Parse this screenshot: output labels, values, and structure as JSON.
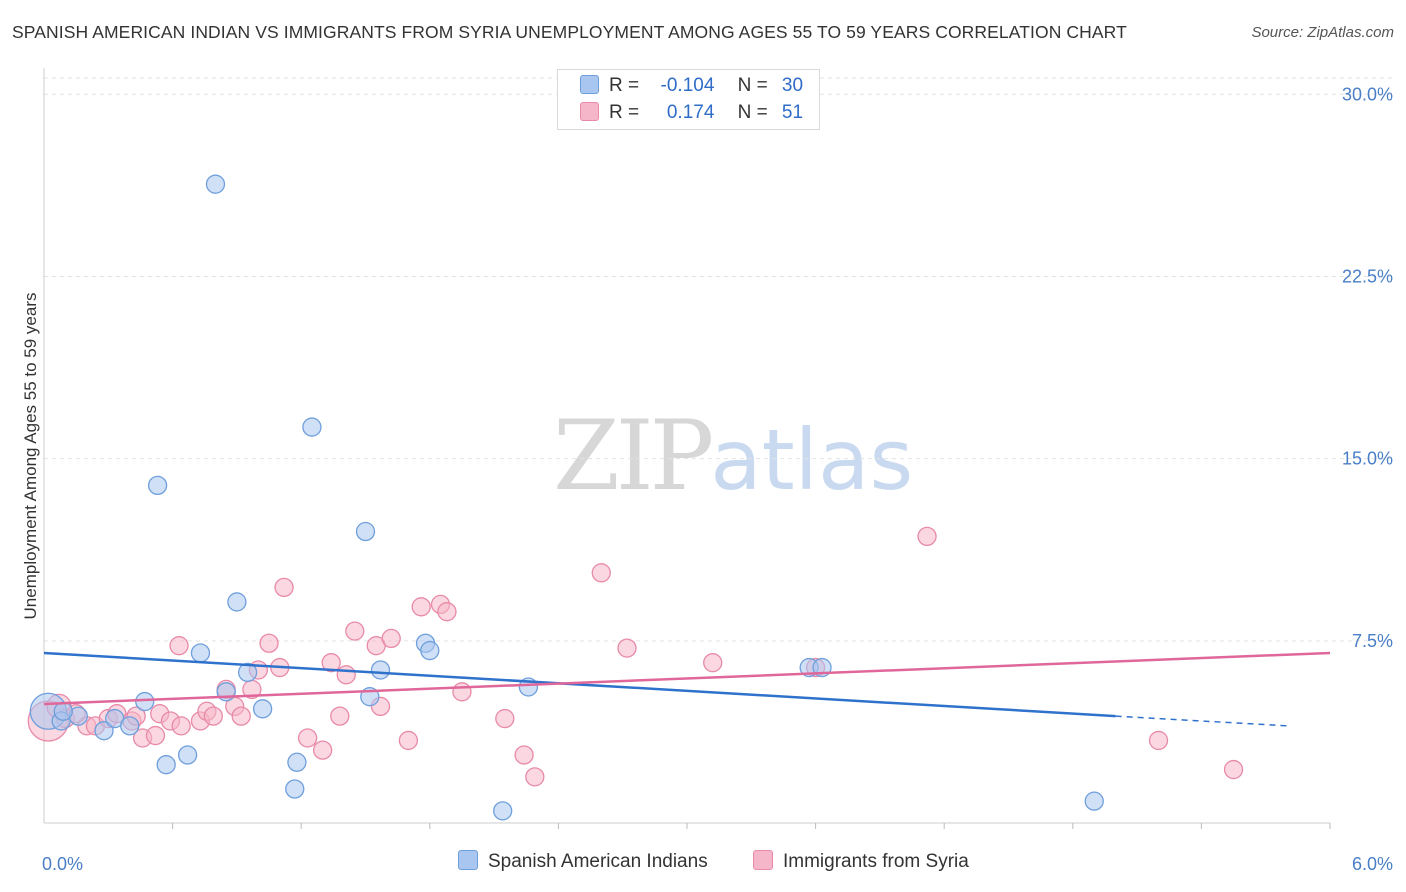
{
  "header": {
    "title": "SPANISH AMERICAN INDIAN VS IMMIGRANTS FROM SYRIA UNEMPLOYMENT AMONG AGES 55 TO 59 YEARS CORRELATION CHART",
    "source": "Source: ZipAtlas.com"
  },
  "watermark": {
    "zip": "ZIP",
    "atlas": "atlas"
  },
  "legend_top": {
    "rows": [
      {
        "r_label": "R =",
        "r_value": "-0.104",
        "n_label": "N =",
        "n_value": "30",
        "color": "#a9c6f0"
      },
      {
        "r_label": "R =",
        "r_value": "0.174",
        "n_label": "N =",
        "n_value": "51",
        "color": "#f5b6c9"
      }
    ]
  },
  "legend_bottom": {
    "items": [
      {
        "label": "Spanish American Indians",
        "color": "#a9c6f0"
      },
      {
        "label": "Immigrants from Syria",
        "color": "#f5b6c9"
      }
    ]
  },
  "colors": {
    "blue_fill": "#a9c6f0",
    "blue_stroke": "#6f9fdc",
    "blue_line": "#2f72cc",
    "pink_fill": "#f5b6c9",
    "pink_stroke": "#e88aa8",
    "pink_line": "#e0679a",
    "grid": "#e3e3e3",
    "tick_text": "#4a7fc7"
  },
  "chart_data": {
    "type": "scatter",
    "title": "SPANISH AMERICAN INDIAN VS IMMIGRANTS FROM SYRIA UNEMPLOYMENT AMONG AGES 55 TO 59 YEARS CORRELATION CHART",
    "xlabel": "",
    "ylabel": "Unemployment Among Ages 55 to 59 years",
    "xlim": [
      0,
      6
    ],
    "ylim": [
      0,
      31
    ],
    "x_tick_labels": [
      {
        "value": 0,
        "label": "0.0%"
      },
      {
        "value": 6,
        "label": "6.0%"
      }
    ],
    "x_minor_ticks": [
      0.6,
      1.2,
      1.8,
      2.4,
      3.0,
      3.6,
      4.2,
      4.8,
      5.4,
      6.0
    ],
    "y_ticks": [
      {
        "value": 7.5,
        "label": "7.5%"
      },
      {
        "value": 15.0,
        "label": "15.0%"
      },
      {
        "value": 22.5,
        "label": "22.5%"
      },
      {
        "value": 30.0,
        "label": "30.0%"
      }
    ],
    "grid": true,
    "legend_position": "top-center",
    "series": [
      {
        "name": "Spanish American Indians",
        "r": -0.104,
        "n": 30,
        "trend": {
          "x0": 0.0,
          "y0": 7.0,
          "x1": 5.0,
          "y1": 4.4,
          "dash_x1": 5.8,
          "dash_y1": 4.0
        },
        "points": [
          [
            0.02,
            4.6,
            18
          ],
          [
            0.08,
            4.2,
            9
          ],
          [
            0.16,
            4.4,
            9
          ],
          [
            0.28,
            3.8,
            9
          ],
          [
            0.33,
            4.3,
            9
          ],
          [
            0.4,
            4.0,
            9
          ],
          [
            0.47,
            5.0,
            9
          ],
          [
            0.57,
            2.4,
            9
          ],
          [
            0.53,
            13.9,
            9
          ],
          [
            0.67,
            2.8,
            9
          ],
          [
            0.73,
            7.0,
            9
          ],
          [
            0.8,
            26.3,
            9
          ],
          [
            0.85,
            5.4,
            9
          ],
          [
            0.9,
            9.1,
            9
          ],
          [
            0.95,
            6.2,
            9
          ],
          [
            1.02,
            4.7,
            9
          ],
          [
            1.17,
            1.4,
            9
          ],
          [
            1.18,
            2.5,
            9
          ],
          [
            1.25,
            16.3,
            9
          ],
          [
            1.5,
            12.0,
            9
          ],
          [
            1.52,
            5.2,
            9
          ],
          [
            1.57,
            6.3,
            9
          ],
          [
            1.78,
            7.4,
            9
          ],
          [
            1.8,
            7.1,
            9
          ],
          [
            2.14,
            0.5,
            9
          ],
          [
            2.26,
            5.6,
            9
          ],
          [
            3.57,
            6.4,
            9
          ],
          [
            3.63,
            6.4,
            9
          ],
          [
            4.9,
            0.9,
            9
          ],
          [
            0.09,
            4.6,
            9
          ]
        ]
      },
      {
        "name": "Immigrants from Syria",
        "r": 0.174,
        "n": 51,
        "trend": {
          "x0": 0.0,
          "y0": 4.9,
          "x1": 6.0,
          "y1": 7.0
        },
        "points": [
          [
            0.02,
            4.2,
            20
          ],
          [
            0.07,
            4.8,
            12
          ],
          [
            0.1,
            4.3,
            9
          ],
          [
            0.2,
            4.0,
            9
          ],
          [
            0.24,
            4.0,
            9
          ],
          [
            0.3,
            4.3,
            9
          ],
          [
            0.34,
            4.5,
            9
          ],
          [
            0.41,
            4.2,
            9
          ],
          [
            0.46,
            3.5,
            9
          ],
          [
            0.52,
            3.6,
            9
          ],
          [
            0.54,
            4.5,
            9
          ],
          [
            0.59,
            4.2,
            9
          ],
          [
            0.64,
            4.0,
            9
          ],
          [
            0.63,
            7.3,
            9
          ],
          [
            0.73,
            4.2,
            9
          ],
          [
            0.76,
            4.6,
            9
          ],
          [
            0.79,
            4.4,
            9
          ],
          [
            0.85,
            5.5,
            9
          ],
          [
            0.89,
            4.8,
            9
          ],
          [
            0.92,
            4.4,
            9
          ],
          [
            0.97,
            5.5,
            9
          ],
          [
            1.0,
            6.3,
            9
          ],
          [
            1.05,
            7.4,
            9
          ],
          [
            1.1,
            6.4,
            9
          ],
          [
            1.12,
            9.7,
            9
          ],
          [
            1.23,
            3.5,
            9
          ],
          [
            1.3,
            3.0,
            9
          ],
          [
            1.34,
            6.6,
            9
          ],
          [
            1.38,
            4.4,
            9
          ],
          [
            1.41,
            6.1,
            9
          ],
          [
            1.45,
            7.9,
            9
          ],
          [
            1.55,
            7.3,
            9
          ],
          [
            1.62,
            7.6,
            9
          ],
          [
            1.7,
            3.4,
            9
          ],
          [
            1.76,
            8.9,
            9
          ],
          [
            1.85,
            9.0,
            9
          ],
          [
            1.88,
            8.7,
            9
          ],
          [
            1.95,
            5.4,
            9
          ],
          [
            2.15,
            4.3,
            9
          ],
          [
            2.24,
            2.8,
            9
          ],
          [
            2.29,
            1.9,
            9
          ],
          [
            2.6,
            10.3,
            9
          ],
          [
            2.72,
            7.2,
            9
          ],
          [
            3.12,
            6.6,
            9
          ],
          [
            3.6,
            6.4,
            9
          ],
          [
            4.12,
            11.8,
            9
          ],
          [
            5.2,
            3.4,
            9
          ],
          [
            5.55,
            2.2,
            9
          ],
          [
            0.15,
            4.5,
            9
          ],
          [
            0.43,
            4.4,
            9
          ],
          [
            1.57,
            4.8,
            9
          ]
        ]
      }
    ]
  }
}
